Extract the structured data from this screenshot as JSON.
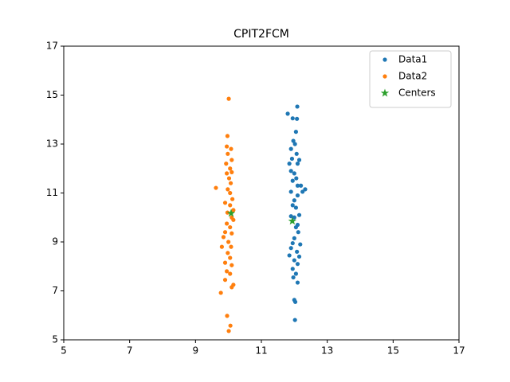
{
  "chart_data": {
    "type": "scatter",
    "title": "CPIT2FCM",
    "xlim": [
      5,
      17
    ],
    "ylim": [
      5,
      17
    ],
    "xticks": [
      5,
      7,
      9,
      11,
      13,
      15,
      17
    ],
    "yticks": [
      5,
      7,
      9,
      11,
      13,
      15,
      17
    ],
    "legend": "upper right",
    "series": [
      {
        "name": "Data1",
        "color": "#1f77b4",
        "marker": "circle",
        "x": [
          12.09,
          11.8,
          11.95,
          12.08,
          12.05,
          11.97,
          12.02,
          11.9,
          12.07,
          11.93,
          12.15,
          11.85,
          12.1,
          11.9,
          12.0,
          12.06,
          11.95,
          12.1,
          12.2,
          12.33,
          12.25,
          11.9,
          12.1,
          12.0,
          11.95,
          12.05,
          12.15,
          11.9,
          12.0,
          12.1,
          12.05,
          12.12,
          12.0,
          11.95,
          12.18,
          11.9,
          12.08,
          12.15,
          11.85,
          12.0,
          12.1,
          11.95,
          12.05,
          11.97,
          12.1,
          12.0,
          12.03,
          12.02
        ],
        "y": [
          14.53,
          14.24,
          14.05,
          14.03,
          13.5,
          13.13,
          13.0,
          12.8,
          12.6,
          12.4,
          12.35,
          12.2,
          12.2,
          11.9,
          11.8,
          11.6,
          11.5,
          11.3,
          11.3,
          11.15,
          11.05,
          11.05,
          10.9,
          10.7,
          10.5,
          10.4,
          10.1,
          10.05,
          10.0,
          9.7,
          9.6,
          9.4,
          9.15,
          8.95,
          8.9,
          8.75,
          8.6,
          8.4,
          8.45,
          8.25,
          8.1,
          7.9,
          7.7,
          7.55,
          7.34,
          6.63,
          6.55,
          5.81
        ]
      },
      {
        "name": "Data2",
        "color": "#ff7f0e",
        "marker": "circle",
        "x": [
          10.01,
          9.97,
          9.95,
          10.08,
          9.98,
          10.1,
          9.93,
          10.05,
          10.1,
          9.95,
          10.02,
          10.07,
          9.62,
          9.98,
          10.05,
          10.12,
          9.9,
          10.05,
          10.15,
          9.97,
          10.1,
          10.15,
          9.95,
          10.05,
          9.9,
          10.1,
          9.85,
          10.0,
          10.08,
          9.8,
          9.98,
          10.05,
          9.9,
          10.1,
          9.95,
          10.05,
          9.9,
          10.15,
          10.1,
          9.77,
          9.96,
          10.06,
          10.01
        ],
        "y": [
          14.85,
          13.33,
          12.9,
          12.8,
          12.6,
          12.35,
          12.2,
          12.0,
          11.85,
          11.8,
          11.6,
          11.4,
          11.21,
          11.15,
          11.0,
          10.75,
          10.6,
          10.5,
          10.3,
          10.2,
          10.0,
          9.9,
          9.75,
          9.6,
          9.4,
          9.35,
          9.2,
          9.0,
          8.8,
          8.8,
          8.55,
          8.35,
          8.15,
          8.05,
          7.8,
          7.7,
          7.45,
          7.25,
          7.15,
          6.92,
          5.98,
          5.58,
          5.36
        ]
      },
      {
        "name": "Centers",
        "color": "#2ca02c",
        "marker": "star",
        "x": [
          10.08,
          11.94
        ],
        "y": [
          10.17,
          9.85
        ]
      }
    ]
  }
}
